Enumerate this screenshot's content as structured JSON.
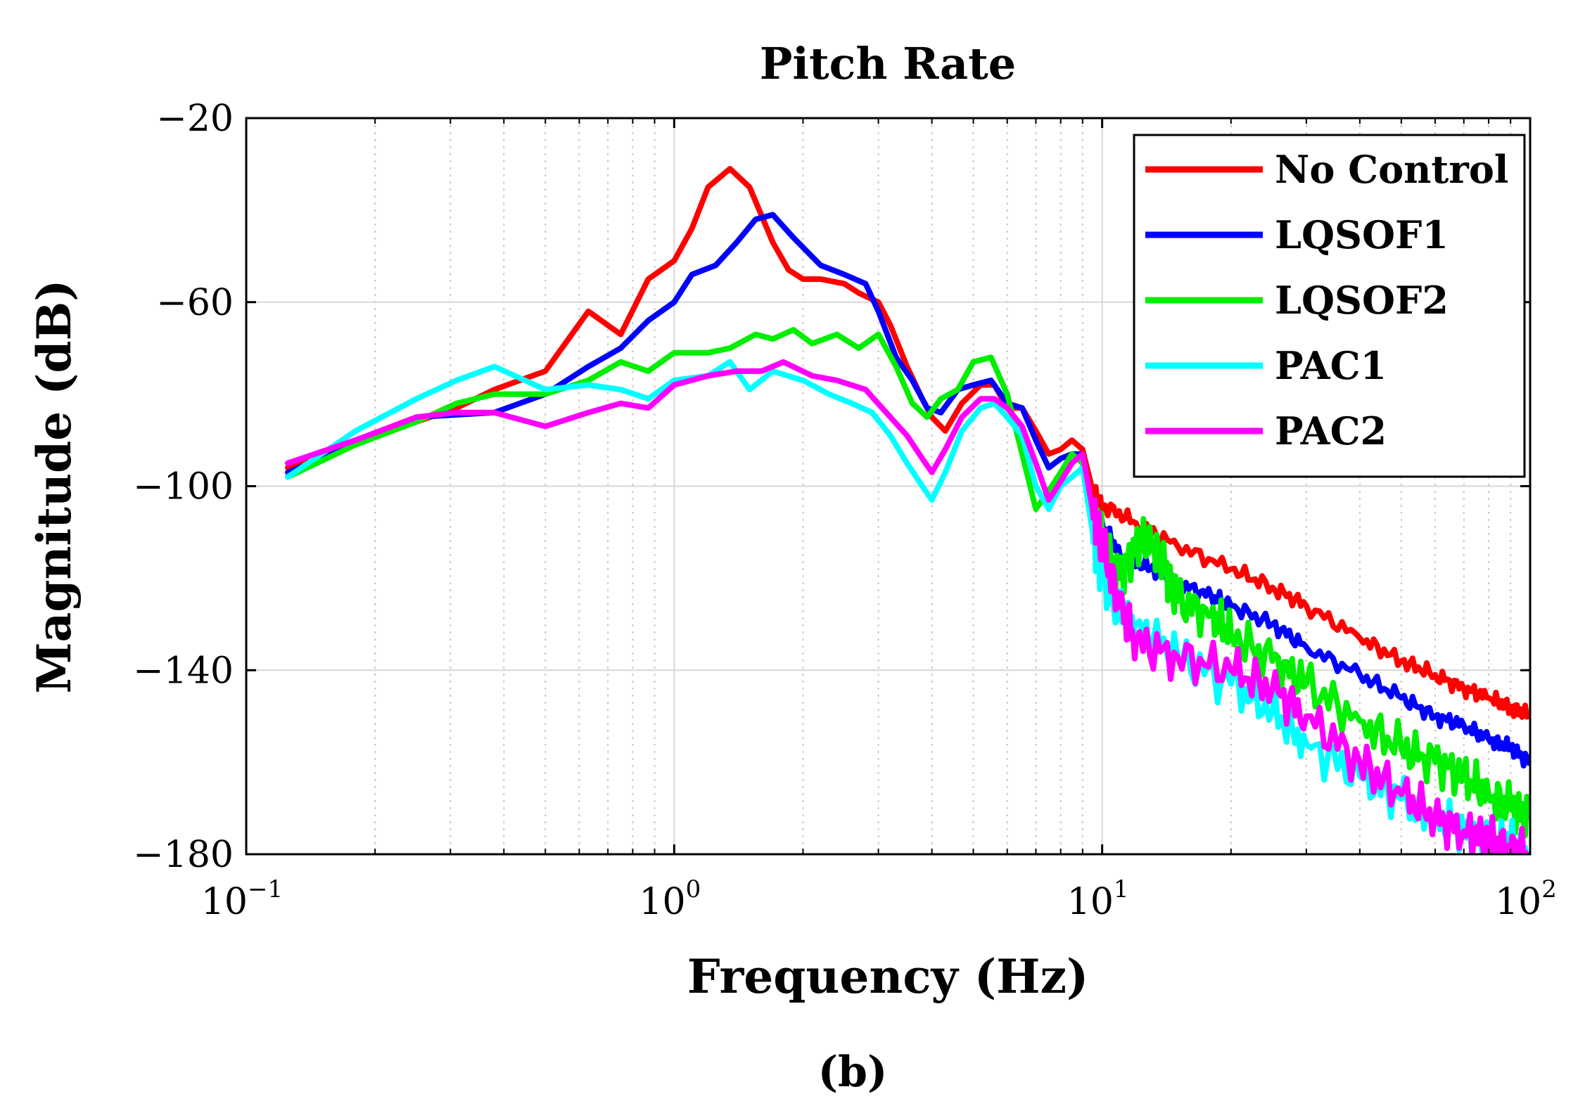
{
  "chart_data": {
    "type": "line",
    "title": "Pitch Rate",
    "xlabel": "Frequency (Hz)",
    "ylabel": "Magnitude (dB)",
    "caption": "(b)",
    "xscale": "log",
    "xlim": [
      0.1,
      100
    ],
    "ylim": [
      -180,
      -20
    ],
    "x_ticks": [
      {
        "base": "10",
        "exp": "−1",
        "value": 0.1
      },
      {
        "base": "10",
        "exp": "0",
        "value": 1
      },
      {
        "base": "10",
        "exp": "1",
        "value": 10
      },
      {
        "base": "10",
        "exp": "2",
        "value": 100
      }
    ],
    "y_ticks": [
      {
        "label": "−20",
        "value": -20
      },
      {
        "label": "−60",
        "value": -60
      },
      {
        "label": "−100",
        "value": -100
      },
      {
        "label": "−140",
        "value": -140
      },
      {
        "label": "−180",
        "value": -180
      }
    ],
    "grid": true,
    "legend_position": "top-right",
    "series": [
      {
        "name": "No Control",
        "color": "#ff0000",
        "points": [
          [
            0.125,
            -96
          ],
          [
            0.18,
            -90
          ],
          [
            0.25,
            -86
          ],
          [
            0.31,
            -83
          ],
          [
            0.38,
            -79
          ],
          [
            0.5,
            -75
          ],
          [
            0.63,
            -62
          ],
          [
            0.75,
            -67
          ],
          [
            0.87,
            -55
          ],
          [
            1.0,
            -51
          ],
          [
            1.1,
            -44
          ],
          [
            1.2,
            -35
          ],
          [
            1.35,
            -31
          ],
          [
            1.5,
            -35
          ],
          [
            1.7,
            -47
          ],
          [
            1.85,
            -53
          ],
          [
            2.0,
            -55
          ],
          [
            2.2,
            -55
          ],
          [
            2.5,
            -56
          ],
          [
            2.7,
            -58
          ],
          [
            3.0,
            -60
          ],
          [
            3.2,
            -65
          ],
          [
            3.5,
            -74
          ],
          [
            3.8,
            -81
          ],
          [
            4.0,
            -85
          ],
          [
            4.3,
            -88
          ],
          [
            4.7,
            -82
          ],
          [
            5.2,
            -78
          ],
          [
            5.6,
            -78
          ],
          [
            6.0,
            -83
          ],
          [
            6.5,
            -83
          ],
          [
            7.0,
            -88
          ],
          [
            7.5,
            -93
          ],
          [
            8.0,
            -92
          ],
          [
            8.5,
            -90
          ],
          [
            9.0,
            -92
          ],
          [
            9.5,
            -101
          ],
          [
            10,
            -104
          ],
          [
            12,
            -108
          ],
          [
            15,
            -113
          ],
          [
            20,
            -118
          ],
          [
            25,
            -122
          ],
          [
            30,
            -126
          ],
          [
            40,
            -133
          ],
          [
            50,
            -138
          ],
          [
            60,
            -141
          ],
          [
            70,
            -144
          ],
          [
            80,
            -146
          ],
          [
            90,
            -148
          ],
          [
            100,
            -150
          ]
        ]
      },
      {
        "name": "LQSOF1",
        "color": "#0000ff",
        "points": [
          [
            0.125,
            -97
          ],
          [
            0.18,
            -91
          ],
          [
            0.25,
            -85
          ],
          [
            0.38,
            -84
          ],
          [
            0.5,
            -80
          ],
          [
            0.63,
            -74
          ],
          [
            0.75,
            -70
          ],
          [
            0.87,
            -64
          ],
          [
            1.0,
            -60
          ],
          [
            1.1,
            -54
          ],
          [
            1.25,
            -52
          ],
          [
            1.4,
            -47
          ],
          [
            1.55,
            -42
          ],
          [
            1.7,
            -41
          ],
          [
            1.9,
            -46
          ],
          [
            2.2,
            -52
          ],
          [
            2.5,
            -54
          ],
          [
            2.8,
            -56
          ],
          [
            3.0,
            -62
          ],
          [
            3.3,
            -72
          ],
          [
            3.6,
            -77
          ],
          [
            3.9,
            -83
          ],
          [
            4.2,
            -84
          ],
          [
            4.6,
            -79
          ],
          [
            5.0,
            -78
          ],
          [
            5.5,
            -77
          ],
          [
            6.0,
            -82
          ],
          [
            6.5,
            -83
          ],
          [
            7.0,
            -90
          ],
          [
            7.5,
            -96
          ],
          [
            8.0,
            -94
          ],
          [
            8.5,
            -93
          ],
          [
            9.0,
            -93
          ],
          [
            9.5,
            -106
          ],
          [
            10,
            -108
          ],
          [
            11,
            -115
          ],
          [
            13,
            -118
          ],
          [
            15,
            -121
          ],
          [
            18,
            -124
          ],
          [
            20,
            -126
          ],
          [
            25,
            -130
          ],
          [
            30,
            -135
          ],
          [
            40,
            -141
          ],
          [
            50,
            -146
          ],
          [
            60,
            -150
          ],
          [
            70,
            -152
          ],
          [
            80,
            -155
          ],
          [
            90,
            -157
          ],
          [
            100,
            -160
          ]
        ]
      },
      {
        "name": "LQSOF2",
        "color": "#00ee00",
        "points": [
          [
            0.125,
            -98
          ],
          [
            0.18,
            -91
          ],
          [
            0.25,
            -86
          ],
          [
            0.31,
            -82
          ],
          [
            0.38,
            -80
          ],
          [
            0.5,
            -80
          ],
          [
            0.63,
            -77
          ],
          [
            0.75,
            -73
          ],
          [
            0.87,
            -75
          ],
          [
            1.0,
            -71
          ],
          [
            1.2,
            -71
          ],
          [
            1.35,
            -70
          ],
          [
            1.55,
            -67
          ],
          [
            1.7,
            -68
          ],
          [
            1.9,
            -66
          ],
          [
            2.1,
            -69
          ],
          [
            2.4,
            -67
          ],
          [
            2.7,
            -70
          ],
          [
            3.0,
            -67
          ],
          [
            3.3,
            -74
          ],
          [
            3.6,
            -82
          ],
          [
            3.9,
            -85
          ],
          [
            4.2,
            -81
          ],
          [
            4.6,
            -79
          ],
          [
            5.0,
            -73
          ],
          [
            5.5,
            -72
          ],
          [
            6.0,
            -80
          ],
          [
            6.5,
            -93
          ],
          [
            7.0,
            -105
          ],
          [
            7.5,
            -101
          ],
          [
            8.0,
            -97
          ],
          [
            8.5,
            -93
          ],
          [
            9.0,
            -95
          ],
          [
            9.5,
            -106
          ],
          [
            10,
            -112
          ],
          [
            11,
            -120
          ],
          [
            12,
            -113
          ],
          [
            13,
            -112
          ],
          [
            14,
            -118
          ],
          [
            15,
            -125
          ],
          [
            18,
            -128
          ],
          [
            20,
            -132
          ],
          [
            25,
            -138
          ],
          [
            30,
            -143
          ],
          [
            40,
            -151
          ],
          [
            50,
            -157
          ],
          [
            60,
            -160
          ],
          [
            70,
            -163
          ],
          [
            80,
            -167
          ],
          [
            90,
            -170
          ],
          [
            100,
            -172
          ]
        ]
      },
      {
        "name": "PAC1",
        "color": "#00ffff",
        "points": [
          [
            0.125,
            -98
          ],
          [
            0.18,
            -88
          ],
          [
            0.25,
            -81
          ],
          [
            0.31,
            -77
          ],
          [
            0.38,
            -74
          ],
          [
            0.5,
            -79
          ],
          [
            0.63,
            -78
          ],
          [
            0.75,
            -79
          ],
          [
            0.87,
            -81
          ],
          [
            1.0,
            -77
          ],
          [
            1.2,
            -76
          ],
          [
            1.35,
            -73
          ],
          [
            1.5,
            -79
          ],
          [
            1.7,
            -75
          ],
          [
            2.0,
            -77
          ],
          [
            2.3,
            -80
          ],
          [
            2.6,
            -82
          ],
          [
            2.9,
            -84
          ],
          [
            3.2,
            -89
          ],
          [
            3.5,
            -95
          ],
          [
            3.8,
            -100
          ],
          [
            4.0,
            -103
          ],
          [
            4.3,
            -97
          ],
          [
            4.7,
            -88
          ],
          [
            5.2,
            -83
          ],
          [
            5.6,
            -82
          ],
          [
            6.0,
            -85
          ],
          [
            6.5,
            -89
          ],
          [
            7.0,
            -100
          ],
          [
            7.5,
            -105
          ],
          [
            8.0,
            -100
          ],
          [
            8.5,
            -98
          ],
          [
            9.0,
            -96
          ],
          [
            9.5,
            -110
          ],
          [
            10,
            -120
          ],
          [
            11,
            -128
          ],
          [
            12,
            -130
          ],
          [
            15,
            -137
          ],
          [
            20,
            -143
          ],
          [
            25,
            -149
          ],
          [
            30,
            -156
          ],
          [
            40,
            -163
          ],
          [
            50,
            -168
          ],
          [
            60,
            -172
          ],
          [
            70,
            -175
          ],
          [
            80,
            -177
          ],
          [
            90,
            -178
          ],
          [
            100,
            -180
          ]
        ]
      },
      {
        "name": "PAC2",
        "color": "#ff00ff",
        "points": [
          [
            0.125,
            -95
          ],
          [
            0.18,
            -90
          ],
          [
            0.25,
            -85
          ],
          [
            0.31,
            -84
          ],
          [
            0.38,
            -84
          ],
          [
            0.5,
            -87
          ],
          [
            0.63,
            -84
          ],
          [
            0.75,
            -82
          ],
          [
            0.87,
            -83
          ],
          [
            1.0,
            -78
          ],
          [
            1.2,
            -76
          ],
          [
            1.4,
            -75
          ],
          [
            1.6,
            -75
          ],
          [
            1.8,
            -73
          ],
          [
            2.1,
            -76
          ],
          [
            2.4,
            -77
          ],
          [
            2.8,
            -79
          ],
          [
            3.2,
            -85
          ],
          [
            3.5,
            -89
          ],
          [
            3.8,
            -94
          ],
          [
            4.0,
            -97
          ],
          [
            4.3,
            -92
          ],
          [
            4.7,
            -85
          ],
          [
            5.2,
            -81
          ],
          [
            5.6,
            -81
          ],
          [
            6.0,
            -83
          ],
          [
            6.5,
            -87
          ],
          [
            7.0,
            -95
          ],
          [
            7.5,
            -103
          ],
          [
            8.0,
            -99
          ],
          [
            8.5,
            -95
          ],
          [
            9.0,
            -93
          ],
          [
            9.5,
            -105
          ],
          [
            10,
            -113
          ],
          [
            11,
            -126
          ],
          [
            12,
            -134
          ],
          [
            15,
            -137
          ],
          [
            20,
            -140
          ],
          [
            25,
            -144
          ],
          [
            30,
            -150
          ],
          [
            40,
            -160
          ],
          [
            50,
            -167
          ],
          [
            60,
            -172
          ],
          [
            70,
            -175
          ],
          [
            80,
            -177
          ],
          [
            90,
            -179
          ],
          [
            100,
            -180
          ]
        ]
      }
    ]
  }
}
